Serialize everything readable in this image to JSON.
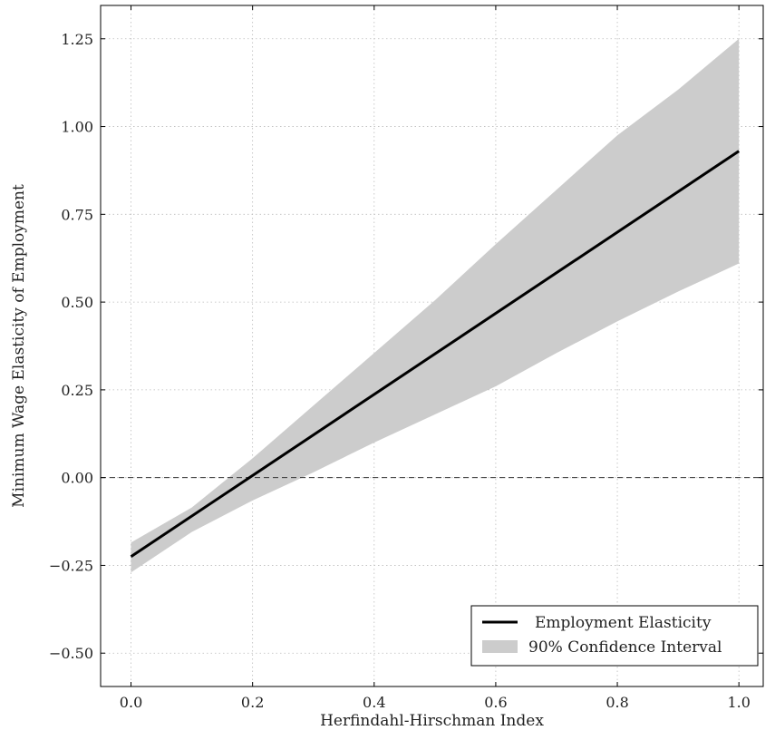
{
  "chart_data": {
    "type": "line",
    "title": "",
    "xlabel": "Herfindahl-Hirschman Index",
    "ylabel": "Minimum Wage Elasticity of Employment",
    "xlim": [
      -0.05,
      1.04
    ],
    "ylim": [
      -0.595,
      1.345
    ],
    "x_ticks": [
      0.0,
      0.2,
      0.4,
      0.6,
      0.8,
      1.0
    ],
    "x_tick_labels": [
      "0.0",
      "0.2",
      "0.4",
      "0.6",
      "0.8",
      "1.0"
    ],
    "y_ticks": [
      -0.5,
      -0.25,
      0.0,
      0.25,
      0.5,
      0.75,
      1.0,
      1.25
    ],
    "y_tick_labels": [
      "−0.50",
      "−0.25",
      "0.00",
      "0.25",
      "0.50",
      "0.75",
      "1.00",
      "1.25"
    ],
    "grid": true,
    "reference_line": {
      "y": 0.0,
      "style": "dashed"
    },
    "series": [
      {
        "name": "Employment Elasticity",
        "kind": "line",
        "color": "#000000",
        "x": [
          0.0,
          1.0
        ],
        "y": [
          -0.225,
          0.93
        ]
      },
      {
        "name": "90% Confidence Interval",
        "kind": "band",
        "color": "#cccccc",
        "x": [
          0.0,
          0.1,
          0.2,
          0.3,
          0.4,
          0.5,
          0.6,
          0.7,
          0.8,
          0.9,
          1.0
        ],
        "lower": [
          -0.27,
          -0.155,
          -0.065,
          0.015,
          0.1,
          0.18,
          0.26,
          0.355,
          0.445,
          0.53,
          0.61
        ],
        "upper": [
          -0.185,
          -0.085,
          0.055,
          0.205,
          0.355,
          0.505,
          0.665,
          0.82,
          0.975,
          1.105,
          1.25
        ]
      }
    ],
    "legend": {
      "position": "bottom-right",
      "entries": [
        "Employment Elasticity",
        "90% Confidence Interval"
      ]
    }
  }
}
